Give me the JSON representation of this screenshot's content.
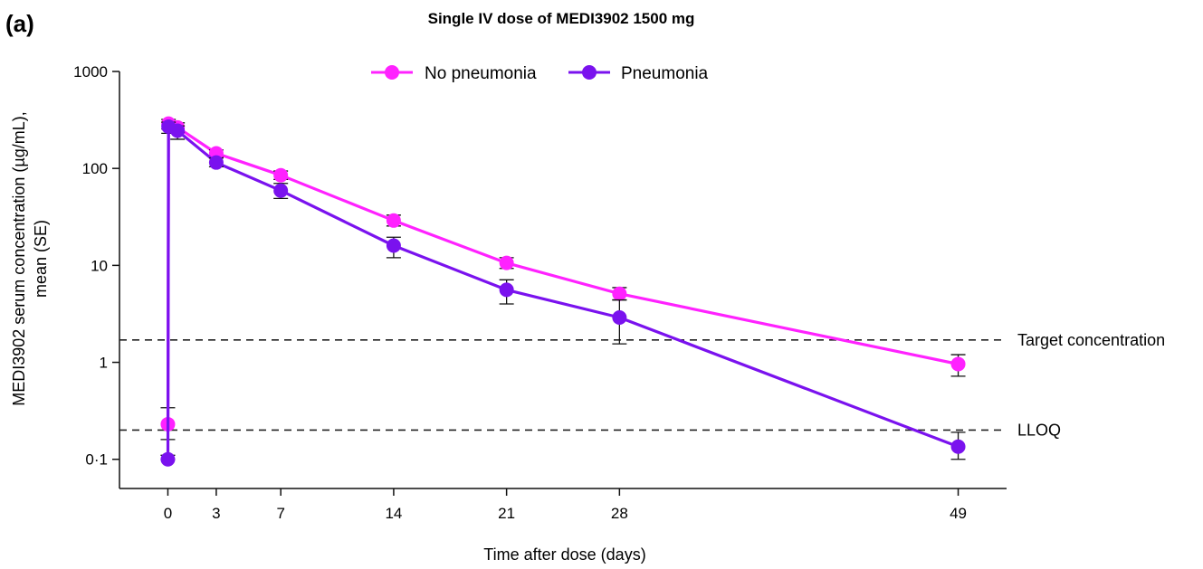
{
  "chart_data": {
    "type": "line",
    "panel_label": "(a)",
    "title": "Single IV dose of MEDI3902 1500 mg",
    "xlabel": "Time after dose (days)",
    "ylabel_line1": "MEDI3902 serum concentration (µg/mL),",
    "ylabel_line2": "mean (SE)",
    "xlim": [
      -3,
      52
    ],
    "xticks": [
      0,
      3,
      7,
      14,
      21,
      28,
      49
    ],
    "xtick_labels": [
      "0",
      "3",
      "7",
      "14",
      "21",
      "28",
      "49"
    ],
    "yscale": "log",
    "ylim": [
      0.05,
      1000
    ],
    "yticks": [
      0.1,
      1,
      10,
      100,
      1000
    ],
    "ytick_labels": [
      "0·1",
      "1",
      "10",
      "100",
      "1000"
    ],
    "grid": false,
    "legend_position": "top",
    "reference_lines": [
      {
        "label": "Target concentration",
        "y": 1.7
      },
      {
        "label": "LLOQ",
        "y": 0.2
      }
    ],
    "series": [
      {
        "name": "No pneumonia",
        "color": "#ff22ff",
        "points": [
          {
            "x": 0,
            "y": 0.23,
            "lo": 0.16,
            "hi": 0.34
          },
          {
            "x": 0.04,
            "y": 290,
            "lo": 255,
            "hi": 320
          },
          {
            "x": 0.6,
            "y": 265,
            "lo": 235,
            "hi": 295
          },
          {
            "x": 3,
            "y": 143,
            "lo": 130,
            "hi": 155
          },
          {
            "x": 7,
            "y": 85,
            "lo": 77,
            "hi": 94
          },
          {
            "x": 14,
            "y": 29,
            "lo": 25.5,
            "hi": 33
          },
          {
            "x": 21,
            "y": 10.6,
            "lo": 9.3,
            "hi": 12
          },
          {
            "x": 28,
            "y": 5.1,
            "lo": 4.4,
            "hi": 5.9
          },
          {
            "x": 49,
            "y": 0.96,
            "lo": 0.72,
            "hi": 1.2
          }
        ]
      },
      {
        "name": "Pneumonia",
        "color": "#7a12ee",
        "points": [
          {
            "x": 0,
            "y": 0.1,
            "lo": 0.1,
            "hi": 0.11
          },
          {
            "x": 0.04,
            "y": 270,
            "lo": 230,
            "hi": 300
          },
          {
            "x": 0.6,
            "y": 245,
            "lo": 200,
            "hi": 275
          },
          {
            "x": 3,
            "y": 115,
            "lo": 104,
            "hi": 128
          },
          {
            "x": 7,
            "y": 59,
            "lo": 49,
            "hi": 70
          },
          {
            "x": 14,
            "y": 16,
            "lo": 12,
            "hi": 19.5
          },
          {
            "x": 21,
            "y": 5.6,
            "lo": 4.0,
            "hi": 7.1
          },
          {
            "x": 28,
            "y": 2.9,
            "lo": 1.55,
            "hi": 4.4
          },
          {
            "x": 49,
            "y": 0.135,
            "lo": 0.1,
            "hi": 0.19
          }
        ]
      }
    ]
  }
}
